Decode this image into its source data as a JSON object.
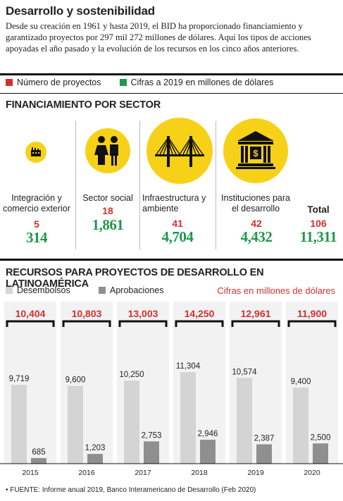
{
  "header": {
    "title": "Desarrollo y sostenibilidad",
    "intro": "Desde su creación en 1961 y hasta 2019, el BID ha proporcionado financiamiento y garantizado proyectos por 297 mil 272 millones de dólares. Aquí los tipos de acciones apoyadas el año pasado y la evolución de los recursos en los cinco años anteriores."
  },
  "legend_top": {
    "projects_label": "Número de proyectos",
    "amounts_label": "Cifras a 2019 en millones de dólares",
    "projects_color": "#d32f2f",
    "amounts_color": "#1a9a4a"
  },
  "sectors": {
    "title": "FINANCIAMIENTO POR SECTOR",
    "items": [
      {
        "label": "Integración y comercio exterior",
        "projects": "5",
        "amount": "314",
        "icon": "factory-icon"
      },
      {
        "label": "Sector social",
        "projects": "18",
        "amount": "1,861",
        "icon": "people-icon"
      },
      {
        "label": "Infraestructura y ambiente",
        "projects": "41",
        "amount": "4,704",
        "icon": "bridge-icon"
      },
      {
        "label": "Instituciones para el desarrollo",
        "projects": "42",
        "amount": "4,432",
        "icon": "institution-icon"
      }
    ],
    "total": {
      "label": "Total",
      "projects": "106",
      "amount": "11,311"
    }
  },
  "chart_data": {
    "type": "bar",
    "title": "RECURSOS PARA PROYECTOS DE DESARROLLO EN LATINOAMÉRICA",
    "unit_note": "Cifras en millones de dólares",
    "categories": [
      "2015",
      "2016",
      "2017",
      "2018",
      "2019",
      "2020"
    ],
    "series": [
      {
        "name": "Desembolsos",
        "values": [
          9719,
          9600,
          10250,
          11304,
          10574,
          9400
        ],
        "color": "#d4d4d4"
      },
      {
        "name": "Aprobaciones",
        "values": [
          685,
          1203,
          2753,
          2946,
          2387,
          2500
        ],
        "color": "#8f8f8f"
      }
    ],
    "totals": [
      10404,
      10803,
      13003,
      14250,
      12961,
      11900
    ],
    "total_color": "#d32f2f",
    "ylim": [
      0,
      12000
    ],
    "grid": false
  },
  "source": "• FUENTE: Informe anual 2019, Banco Interamericano de Desarrollo (Feb 2020)"
}
